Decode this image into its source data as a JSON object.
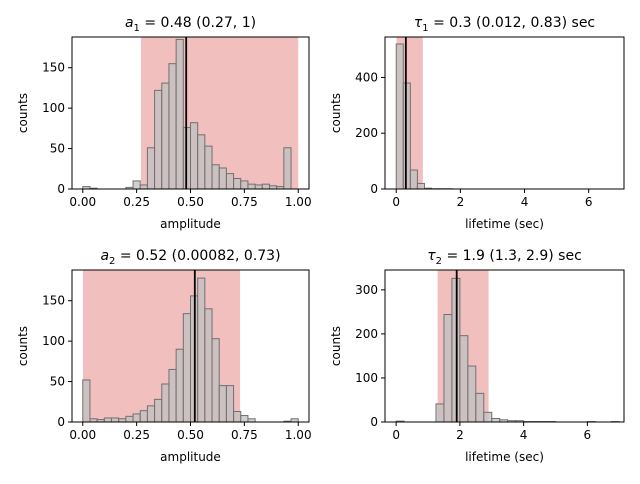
{
  "chart_data": [
    {
      "type": "bar",
      "title": {
        "sym": "a",
        "sub": "1",
        "rest": " = 0.48 (0.27, 1)"
      },
      "xlabel": "amplitude",
      "ylabel": "counts",
      "xlim": [
        -0.05,
        1.05
      ],
      "ylim": [
        0,
        188
      ],
      "xticks": [
        0,
        0.25,
        0.5,
        0.75,
        1.0
      ],
      "xtick_labels": [
        "0.00",
        "0.25",
        "0.50",
        "0.75",
        "1.00"
      ],
      "yticks": [
        0,
        50,
        100,
        150
      ],
      "bin_width": 0.0333,
      "bin_starts": [
        0.0,
        0.0333,
        0.0667,
        0.1,
        0.1333,
        0.1667,
        0.2,
        0.2333,
        0.2667,
        0.3,
        0.3333,
        0.3667,
        0.4,
        0.4333,
        0.4667,
        0.5,
        0.5333,
        0.5667,
        0.6,
        0.6333,
        0.6667,
        0.7,
        0.7333,
        0.7667,
        0.8,
        0.8333,
        0.8667,
        0.9,
        0.9333,
        0.9667
      ],
      "counts": [
        3,
        1,
        0,
        0,
        0,
        0,
        2,
        10,
        5,
        51,
        122,
        131,
        155,
        185,
        76,
        82,
        67,
        53,
        30,
        26,
        19,
        13,
        10,
        6,
        5,
        6,
        4,
        3,
        51,
        0
      ],
      "median": 0.48,
      "interval": [
        0.27,
        1.0
      ]
    },
    {
      "type": "bar",
      "title": {
        "sym": "τ",
        "sub": "1",
        "rest": " = 0.3 (0.012, 0.83) sec"
      },
      "xlabel": "lifetime (sec)",
      "ylabel": "counts",
      "xlim": [
        -0.35,
        7.1
      ],
      "ylim": [
        0,
        545
      ],
      "xticks": [
        0,
        2,
        4,
        6
      ],
      "xtick_labels": [
        "0",
        "2",
        "4",
        "6"
      ],
      "yticks": [
        0,
        200,
        400
      ],
      "bin_width": 0.22,
      "bin_starts": [
        0.0,
        0.22,
        0.44,
        0.66,
        0.88,
        1.1,
        1.32,
        1.54
      ],
      "counts": [
        520,
        380,
        68,
        20,
        3,
        1,
        1,
        1
      ],
      "median": 0.3,
      "interval": [
        0.012,
        0.83
      ]
    },
    {
      "type": "bar",
      "title": {
        "sym": "a",
        "sub": "2",
        "rest": " = 0.52 (0.00082, 0.73)"
      },
      "xlabel": "amplitude",
      "ylabel": "counts",
      "xlim": [
        -0.05,
        1.05
      ],
      "ylim": [
        0,
        188
      ],
      "xticks": [
        0,
        0.25,
        0.5,
        0.75,
        1.0
      ],
      "xtick_labels": [
        "0.00",
        "0.25",
        "0.50",
        "0.75",
        "1.00"
      ],
      "yticks": [
        0,
        50,
        100,
        150
      ],
      "bin_width": 0.0333,
      "bin_starts": [
        0.0,
        0.0333,
        0.0667,
        0.1,
        0.1333,
        0.1667,
        0.2,
        0.2333,
        0.2667,
        0.3,
        0.3333,
        0.3667,
        0.4,
        0.4333,
        0.4667,
        0.5,
        0.5333,
        0.5667,
        0.6,
        0.6333,
        0.6667,
        0.7,
        0.7333,
        0.7667,
        0.8,
        0.8333,
        0.8667,
        0.9,
        0.9333,
        0.9667
      ],
      "counts": [
        52,
        4,
        3,
        5,
        5,
        4,
        7,
        10,
        14,
        20,
        28,
        47,
        65,
        90,
        134,
        156,
        178,
        140,
        103,
        45,
        45,
        13,
        8,
        4,
        0,
        0,
        0,
        0,
        1,
        4
      ],
      "median": 0.52,
      "interval": [
        0.00082,
        0.73
      ]
    },
    {
      "type": "bar",
      "title": {
        "sym": "τ",
        "sub": "2",
        "rest": " = 1.9 (1.3, 2.9) sec"
      },
      "xlabel": "lifetime (sec)",
      "ylabel": "counts",
      "xlim": [
        -0.35,
        7.15
      ],
      "ylim": [
        0,
        345
      ],
      "xticks": [
        0,
        2,
        4,
        6
      ],
      "xtick_labels": [
        "0",
        "2",
        "4",
        "6"
      ],
      "yticks": [
        0,
        100,
        200,
        300
      ],
      "bin_width": 0.25,
      "bin_starts": [
        0.0,
        0.25,
        0.5,
        0.75,
        1.0,
        1.25,
        1.5,
        1.75,
        2.0,
        2.25,
        2.5,
        2.75,
        3.0,
        3.25,
        3.5,
        3.75,
        4.0,
        4.25,
        4.5,
        4.75,
        5.0,
        5.25,
        5.5,
        5.75,
        6.0,
        6.25,
        6.5,
        6.75
      ],
      "counts": [
        2,
        0,
        0,
        0,
        0,
        41,
        244,
        326,
        196,
        127,
        65,
        22,
        8,
        5,
        3,
        3,
        1,
        1,
        1,
        1,
        0,
        0,
        0,
        0,
        1,
        0,
        0,
        1
      ],
      "median": 1.9,
      "interval": [
        1.3,
        2.9
      ]
    }
  ],
  "colors": {
    "bar_fill": "#c0c0c0",
    "bar_edge": "#707070",
    "interval_fill": "#e88a8a",
    "median_line": "#000000",
    "axis": "#000000"
  }
}
